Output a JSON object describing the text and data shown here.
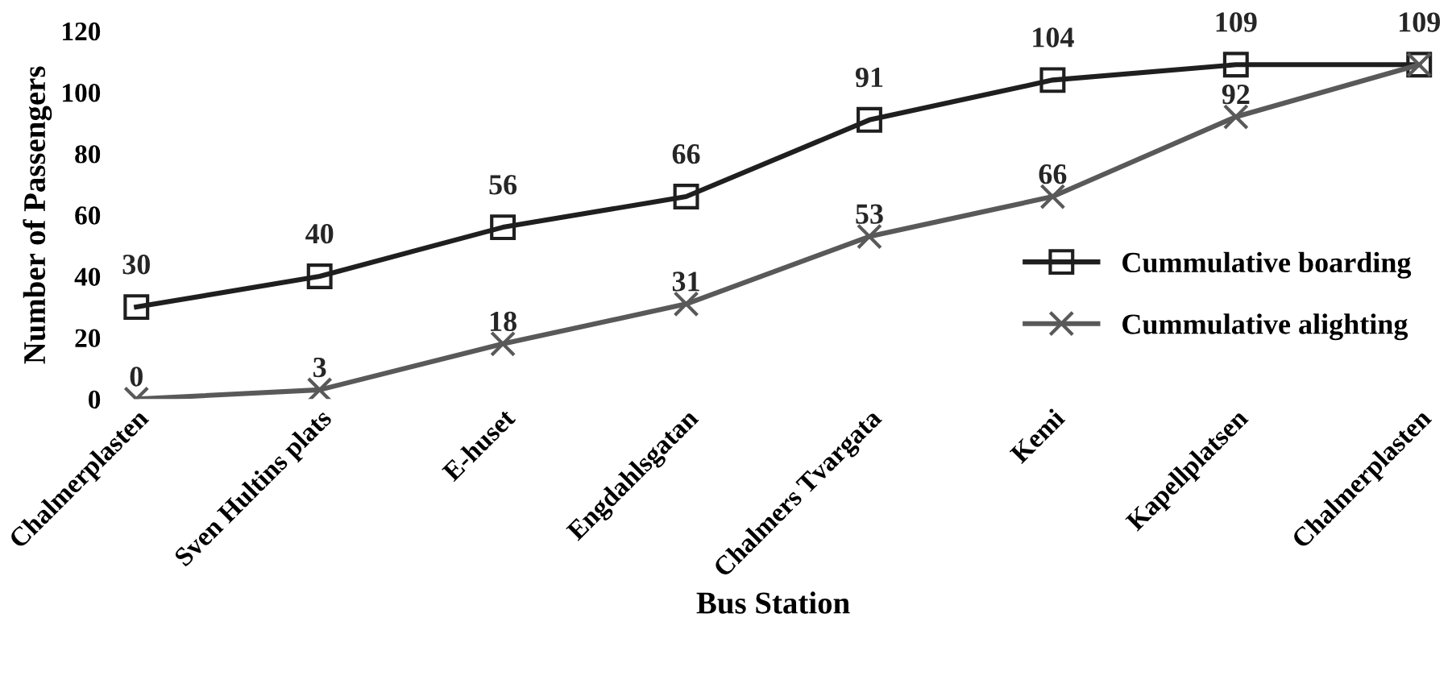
{
  "chart_data": {
    "type": "line",
    "xlabel": "Bus Station",
    "ylabel": "Number of Passengers",
    "categories": [
      "Chalmerplasten",
      "Sven Hultins plats",
      "E-huset",
      "Engdahlsgatan",
      "Chalmers Tvargata",
      "Kemi",
      "Kapellplatsen",
      "Chalmerplasten"
    ],
    "series": [
      {
        "name": "Cummulative boarding",
        "color": "#1f1f1f",
        "marker": "square",
        "values": [
          30,
          40,
          56,
          66,
          91,
          104,
          109,
          109
        ]
      },
      {
        "name": "Cummulative alighting",
        "color": "#595959",
        "marker": "cross",
        "values": [
          0,
          3,
          18,
          31,
          53,
          66,
          92,
          109
        ],
        "value_labels": [
          "0",
          "3",
          "18",
          "31",
          "53",
          "66",
          "92",
          null
        ]
      }
    ],
    "ylim": [
      0,
      120
    ],
    "yticks": [
      0,
      20,
      40,
      60,
      80,
      100,
      120
    ],
    "grid": false,
    "legend": "right",
    "data_labels": true,
    "line_style": "solid"
  }
}
